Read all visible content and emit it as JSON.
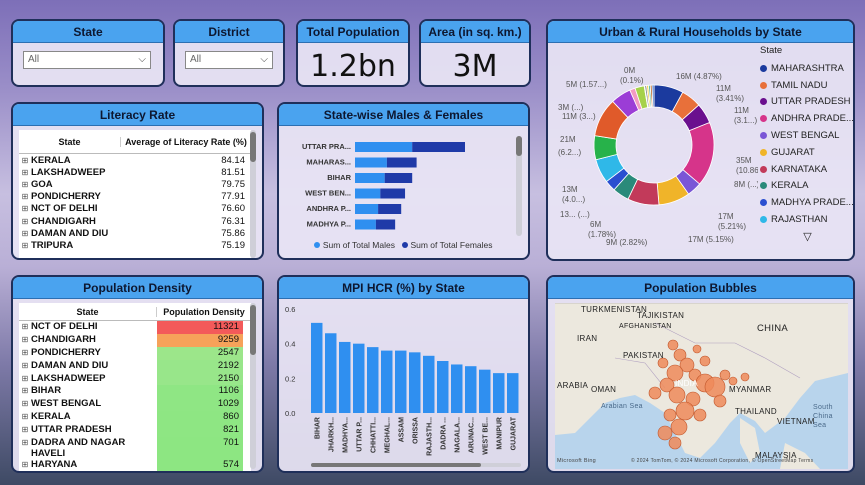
{
  "slicers": {
    "state": {
      "title": "State",
      "value": "All"
    },
    "district": {
      "title": "District",
      "value": "All"
    }
  },
  "kpis": {
    "population": {
      "title": "Total Population",
      "value": "1.2bn"
    },
    "area": {
      "title": "Area (in sq. km.)",
      "value": "3M"
    }
  },
  "literacy": {
    "title": "Literacy Rate",
    "col_state": "State",
    "col_value": "Average of Literacy Rate (%)",
    "rows": [
      {
        "state": "KERALA",
        "value": "84.14"
      },
      {
        "state": "LAKSHADWEEP",
        "value": "81.51"
      },
      {
        "state": "GOA",
        "value": "79.75"
      },
      {
        "state": "PONDICHERRY",
        "value": "77.91"
      },
      {
        "state": "NCT OF DELHI",
        "value": "76.60"
      },
      {
        "state": "CHANDIGARH",
        "value": "76.31"
      },
      {
        "state": "DAMAN AND DIU",
        "value": "75.86"
      },
      {
        "state": "TRIPURA",
        "value": "75.19"
      }
    ]
  },
  "males_females": {
    "title": "State-wise Males & Females",
    "legend_males": "Sum of Total Males",
    "legend_females": "Sum of Total Females",
    "color_males": "#2f8ff0",
    "color_females": "#1f3aa8",
    "chart_data": {
      "type": "bar",
      "orientation": "horizontal",
      "stacked": true,
      "categories": [
        "UTTAR PRA...",
        "MAHARAS...",
        "BIHAR",
        "WEST BEN...",
        "ANDHRA P...",
        "MADHYA P..."
      ],
      "series": [
        {
          "name": "Sum of Total Males",
          "values": [
            104,
            58,
            54,
            46,
            42,
            38
          ]
        },
        {
          "name": "Sum of Total Females",
          "values": [
            96,
            54,
            50,
            45,
            42,
            35
          ]
        }
      ]
    }
  },
  "households": {
    "title": "Urban & Rural Households by State",
    "legend_title": "State",
    "legend": [
      {
        "name": "MAHARASHTRA",
        "color": "#1b3a9e"
      },
      {
        "name": "TAMIL NADU",
        "color": "#e8703a"
      },
      {
        "name": "UTTAR PRADESH",
        "color": "#6a0f8e"
      },
      {
        "name": "ANDHRA PRADE...",
        "color": "#d6348a"
      },
      {
        "name": "WEST BENGAL",
        "color": "#7a56d6"
      },
      {
        "name": "GUJARAT",
        "color": "#f0b429"
      },
      {
        "name": "KARNATAKA",
        "color": "#c23a5a"
      },
      {
        "name": "KERALA",
        "color": "#2a8a7a"
      },
      {
        "name": "MADHYA PRADE...",
        "color": "#2a4fd0"
      },
      {
        "name": "RAJASTHAN",
        "color": "#2fb8e8"
      }
    ],
    "donut_labels": [
      {
        "text": "0M"
      },
      {
        "text": "(0.1%)"
      },
      {
        "text": "16M (4.87%)"
      },
      {
        "text": "5M (1.57...)"
      },
      {
        "text": "3M (...)"
      },
      {
        "text": "11M (3...)"
      },
      {
        "text": "11M"
      },
      {
        "text": "(3.41%)"
      },
      {
        "text": "11M"
      },
      {
        "text": "(3.1...)"
      },
      {
        "text": "21M"
      },
      {
        "text": "(6.2...)"
      },
      {
        "text": "35M"
      },
      {
        "text": "(10.86%)"
      },
      {
        "text": "8M (...)"
      },
      {
        "text": "13M"
      },
      {
        "text": "(4.0...)"
      },
      {
        "text": "13... (...)"
      },
      {
        "text": "17M"
      },
      {
        "text": "(5.21%)"
      },
      {
        "text": "6M"
      },
      {
        "text": "(1.78%)"
      },
      {
        "text": "9M (2.82%)"
      },
      {
        "text": "17M (5.15%)"
      }
    ],
    "chart_data": {
      "type": "pie",
      "donut": true,
      "values_millions": [
        16,
        11,
        11,
        35,
        8,
        17,
        17,
        9,
        6,
        13,
        13,
        21,
        11,
        3,
        5,
        0.3,
        1,
        1,
        1,
        1,
        1
      ],
      "colors": [
        "#1b3a9e",
        "#e8703a",
        "#6a0f8e",
        "#d6348a",
        "#7a56d6",
        "#f0b429",
        "#c23a5a",
        "#2a8a7a",
        "#2a4fd0",
        "#2fb8e8",
        "#27b24a",
        "#e05a2a",
        "#9b3dd6",
        "#f29ac2",
        "#a6d14a",
        "#444444",
        "#888888",
        "#f7d24a",
        "#60c0a0",
        "#c07030",
        "#3060c0"
      ]
    }
  },
  "density": {
    "title": "Population Density",
    "col_state": "State",
    "col_value": "Population Density",
    "rows": [
      {
        "state": "NCT OF DELHI",
        "value": "11321",
        "color": "#f35a5a"
      },
      {
        "state": "CHANDIGARH",
        "value": "9259",
        "color": "#f6a25a"
      },
      {
        "state": "PONDICHERRY",
        "value": "2547",
        "color": "#9ce68a"
      },
      {
        "state": "DAMAN AND DIU",
        "value": "2192",
        "color": "#98e68a"
      },
      {
        "state": "LAKSHADWEEP",
        "value": "2150",
        "color": "#98e68a"
      },
      {
        "state": "BIHAR",
        "value": "1106",
        "color": "#8fe684"
      },
      {
        "state": "WEST BENGAL",
        "value": "1029",
        "color": "#8fe684"
      },
      {
        "state": "KERALA",
        "value": "860",
        "color": "#8ee683"
      },
      {
        "state": "UTTAR PRADESH",
        "value": "821",
        "color": "#8ee683"
      },
      {
        "state": "DADRA AND NAGAR HAVELI",
        "value": "701",
        "color": "#8de682"
      },
      {
        "state": "HARYANA",
        "value": "574",
        "color": "#8de682"
      }
    ]
  },
  "mpi": {
    "title": "MPI HCR (%) by State",
    "color": "#2f8ff0",
    "chart_data": {
      "type": "bar",
      "categories": [
        "BIHAR",
        "JHARKH...",
        "MADHYA...",
        "UTTAR P...",
        "CHHATTI...",
        "MEGHAL...",
        "ASSAM",
        "ORISSA",
        "RAJASTH...",
        "DADRA ...",
        "NAGALA...",
        "ARUNAC...",
        "WEST BE...",
        "MANIPUR",
        "GUJARAT"
      ],
      "values": [
        0.52,
        0.46,
        0.41,
        0.4,
        0.38,
        0.36,
        0.36,
        0.35,
        0.33,
        0.3,
        0.28,
        0.27,
        0.25,
        0.23,
        0.23
      ],
      "yticks": [
        "0.6",
        "0.4",
        "0.2",
        "0.0"
      ],
      "ylim": [
        0,
        0.6
      ]
    }
  },
  "bubbles": {
    "title": "Population Bubbles",
    "labels": {
      "turkmenistan": "TURKMENISTAN",
      "tajikistan": "TAJIKISTAN",
      "china": "CHINA",
      "afghanistan": "AFGHANISTAN",
      "iran": "IRAN",
      "pakistan": "PAKISTAN",
      "arabia": "ARABIA",
      "oman": "OMAN",
      "myanmar": "MYANMAR",
      "thailand": "THAILAND",
      "vietnam": "VIETNAM",
      "malaysia": "MALAYSIA",
      "south_china_sea": "South China Sea",
      "arabian_sea": "Arabian Sea",
      "india": "INDIA",
      "credit": "© 2024 TomTom, © 2024 Microsoft Corporation, © OpenStreetMap Terms",
      "bing": "Microsoft Bing"
    }
  }
}
